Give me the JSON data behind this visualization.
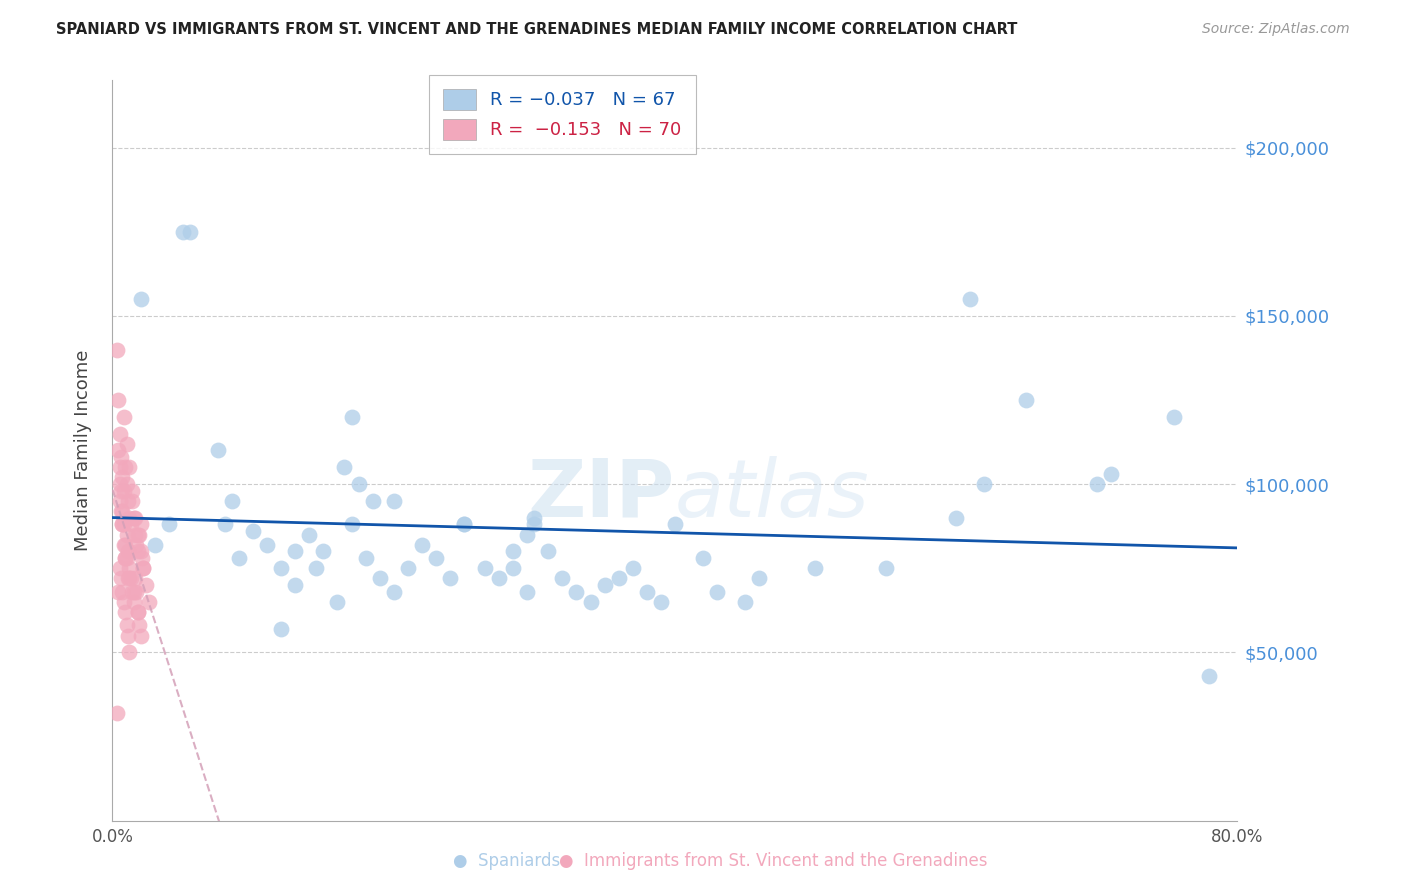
{
  "title": "SPANIARD VS IMMIGRANTS FROM ST. VINCENT AND THE GRENADINES MEDIAN FAMILY INCOME CORRELATION CHART",
  "source": "Source: ZipAtlas.com",
  "ylabel": "Median Family Income",
  "xlim": [
    0,
    0.8
  ],
  "ylim": [
    0,
    220000
  ],
  "spaniards_color": "#aecde8",
  "immigrants_color": "#f2a8bc",
  "trend_spaniards_color": "#1155aa",
  "trend_immigrants_color": "#d4a0b8",
  "watermark": "ZIPatlas",
  "ytick_color": "#4a90d9",
  "spaniards_x": [
    0.02,
    0.04,
    0.055,
    0.075,
    0.03,
    0.085,
    0.1,
    0.09,
    0.11,
    0.13,
    0.12,
    0.14,
    0.15,
    0.165,
    0.17,
    0.18,
    0.19,
    0.2,
    0.21,
    0.22,
    0.23,
    0.17,
    0.24,
    0.25,
    0.265,
    0.275,
    0.285,
    0.295,
    0.3,
    0.175,
    0.185,
    0.31,
    0.32,
    0.33,
    0.34,
    0.35,
    0.285,
    0.295,
    0.36,
    0.37,
    0.38,
    0.39,
    0.4,
    0.42,
    0.43,
    0.45,
    0.46,
    0.5,
    0.55,
    0.6,
    0.61,
    0.62,
    0.65,
    0.7,
    0.71,
    0.755,
    0.78,
    0.05,
    0.08,
    0.12,
    0.2,
    0.25,
    0.3,
    0.13,
    0.145,
    0.16
  ],
  "spaniards_y": [
    155000,
    88000,
    175000,
    110000,
    82000,
    95000,
    86000,
    78000,
    82000,
    80000,
    75000,
    85000,
    80000,
    105000,
    88000,
    78000,
    72000,
    68000,
    75000,
    82000,
    78000,
    120000,
    72000,
    88000,
    75000,
    72000,
    75000,
    68000,
    88000,
    100000,
    95000,
    80000,
    72000,
    68000,
    65000,
    70000,
    80000,
    85000,
    72000,
    75000,
    68000,
    65000,
    88000,
    78000,
    68000,
    65000,
    72000,
    75000,
    75000,
    90000,
    155000,
    100000,
    125000,
    100000,
    103000,
    120000,
    43000,
    175000,
    88000,
    57000,
    95000,
    88000,
    90000,
    70000,
    75000,
    65000
  ],
  "immigrants_x": [
    0.003,
    0.004,
    0.005,
    0.006,
    0.007,
    0.008,
    0.009,
    0.01,
    0.011,
    0.012,
    0.013,
    0.014,
    0.015,
    0.016,
    0.017,
    0.018,
    0.019,
    0.02,
    0.021,
    0.022,
    0.008,
    0.01,
    0.012,
    0.014,
    0.016,
    0.018,
    0.02,
    0.022,
    0.024,
    0.026,
    0.005,
    0.006,
    0.007,
    0.008,
    0.009,
    0.01,
    0.011,
    0.012,
    0.013,
    0.014,
    0.015,
    0.016,
    0.017,
    0.018,
    0.019,
    0.02,
    0.005,
    0.007,
    0.009,
    0.011,
    0.004,
    0.005,
    0.006,
    0.007,
    0.008,
    0.009,
    0.01,
    0.012,
    0.015,
    0.018,
    0.003,
    0.004,
    0.005,
    0.006,
    0.007,
    0.008,
    0.009,
    0.01,
    0.011,
    0.012
  ],
  "immigrants_y": [
    140000,
    125000,
    115000,
    108000,
    102000,
    98000,
    105000,
    100000,
    95000,
    90000,
    88000,
    95000,
    90000,
    85000,
    82000,
    80000,
    85000,
    88000,
    78000,
    75000,
    120000,
    112000,
    105000,
    98000,
    90000,
    85000,
    80000,
    75000,
    70000,
    65000,
    95000,
    92000,
    88000,
    82000,
    78000,
    85000,
    80000,
    75000,
    72000,
    68000,
    65000,
    72000,
    68000,
    62000,
    58000,
    55000,
    100000,
    88000,
    78000,
    72000,
    110000,
    105000,
    98000,
    92000,
    88000,
    82000,
    78000,
    72000,
    68000,
    62000,
    32000,
    68000,
    75000,
    72000,
    68000,
    65000,
    62000,
    58000,
    55000,
    50000
  ]
}
